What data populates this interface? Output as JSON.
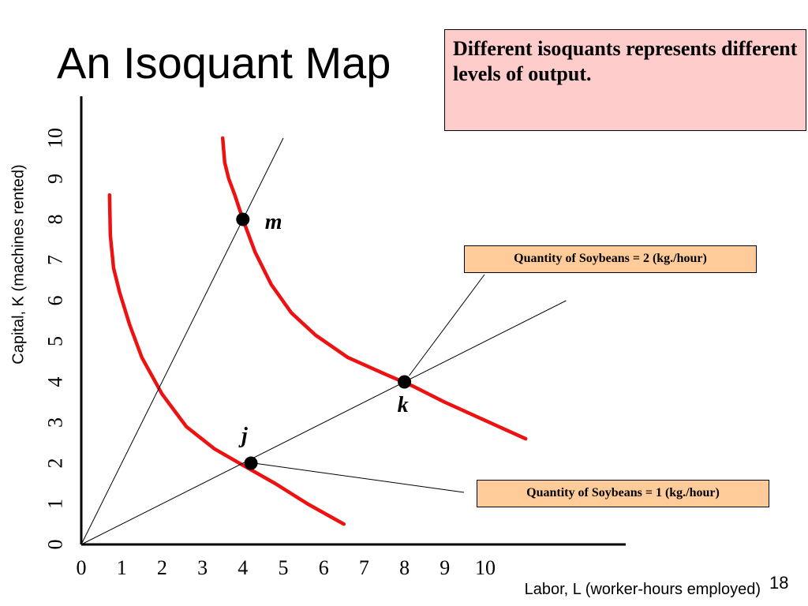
{
  "slide": {
    "title": "An Isoquant Map",
    "callout": "Different isoquants represents different levels of output.",
    "page_number": "18"
  },
  "colors": {
    "isoquant": "#ee1111",
    "callout_bg": "#ffcccc",
    "label_bg": "#ffcc99"
  },
  "chart_data": {
    "type": "line",
    "xlabel": "Labor, L (worker-hours employed)",
    "ylabel": "Capital, K (machines rented)",
    "xlim": [
      0,
      10
    ],
    "ylim": [
      0,
      10
    ],
    "x_ticks": [
      "0",
      "1",
      "2",
      "3",
      "4",
      "5",
      "6",
      "7",
      "8",
      "9",
      "10"
    ],
    "y_ticks": [
      "0",
      "1",
      "2",
      "3",
      "4",
      "5",
      "6",
      "7",
      "8",
      "9",
      "10"
    ],
    "grid": false,
    "series": [
      {
        "kind": "isoquant",
        "label": "Quantity of Soybeans = 1 (kg./hour)",
        "x": [
          0.7,
          0.72,
          0.8,
          0.95,
          1.2,
          1.5,
          2.0,
          2.6,
          3.3,
          4.0,
          4.8,
          5.6,
          6.5
        ],
        "y": [
          8.6,
          7.6,
          6.8,
          6.2,
          5.4,
          4.6,
          3.7,
          2.9,
          2.35,
          1.95,
          1.5,
          1.0,
          0.5
        ]
      },
      {
        "kind": "isoquant",
        "label": "Quantity of Soybeans = 2 (kg./hour)",
        "x": [
          3.5,
          3.55,
          3.65,
          3.8,
          4.0,
          4.3,
          4.7,
          5.2,
          5.8,
          6.6,
          7.5,
          8.2,
          9.0,
          10.0,
          11.0
        ],
        "y": [
          10.0,
          9.4,
          9.0,
          8.6,
          8.0,
          7.2,
          6.4,
          5.7,
          5.15,
          4.6,
          4.2,
          3.9,
          3.5,
          3.05,
          2.6
        ]
      },
      {
        "kind": "ray",
        "x": [
          0,
          5
        ],
        "y": [
          0,
          10
        ]
      },
      {
        "kind": "ray",
        "x": [
          0,
          12
        ],
        "y": [
          0,
          6
        ]
      }
    ],
    "points": [
      {
        "label": "m",
        "x": 4,
        "y": 8
      },
      {
        "label": "k",
        "x": 8,
        "y": 4
      },
      {
        "label": "j",
        "x": 4.2,
        "y": 2.0
      }
    ]
  }
}
